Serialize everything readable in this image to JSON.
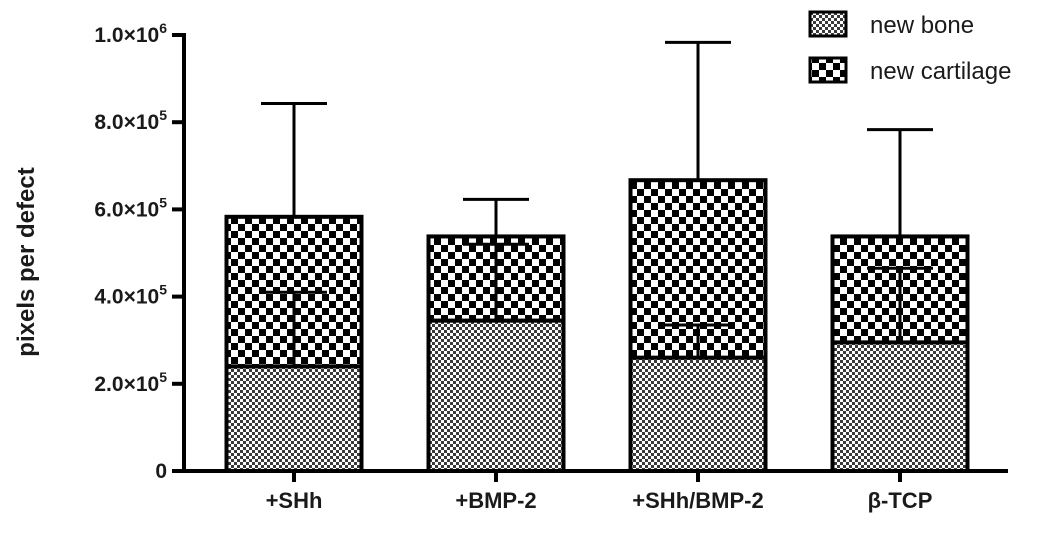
{
  "chart_data": {
    "type": "bar",
    "stacked": true,
    "error_bars": true,
    "categories": [
      "+SHh",
      "+BMP-2",
      "+SHh/BMP-2",
      "β-TCP"
    ],
    "series": [
      {
        "name": "new bone",
        "values": [
          240000,
          345000,
          260000,
          295000
        ],
        "error": [
          170000,
          175000,
          75000,
          170000
        ],
        "pattern": "fine-checker"
      },
      {
        "name": "new cartilage",
        "values": [
          343000,
          193000,
          407000,
          243000
        ],
        "error": [
          260000,
          85000,
          316000,
          245000
        ],
        "pattern": "coarse-checker"
      }
    ],
    "ylabel": "pixels per defect",
    "xlabel": "",
    "ylim": [
      0,
      1000000
    ],
    "yticks": [
      0,
      200000,
      400000,
      600000,
      800000,
      1000000
    ],
    "ytick_labels": [
      {
        "mantissa": "0",
        "exponent": ""
      },
      {
        "mantissa": "2.0×10",
        "exponent": "5"
      },
      {
        "mantissa": "4.0×10",
        "exponent": "5"
      },
      {
        "mantissa": "6.0×10",
        "exponent": "5"
      },
      {
        "mantissa": "8.0×10",
        "exponent": "5"
      },
      {
        "mantissa": "1.0×10",
        "exponent": "6"
      }
    ],
    "legend_position": "top-right",
    "grid": false,
    "colors": {
      "ink": "#000000",
      "background": "#ffffff",
      "fine_fill": "#b8b8b8",
      "coarse_fill": "#1a1a1a"
    }
  }
}
